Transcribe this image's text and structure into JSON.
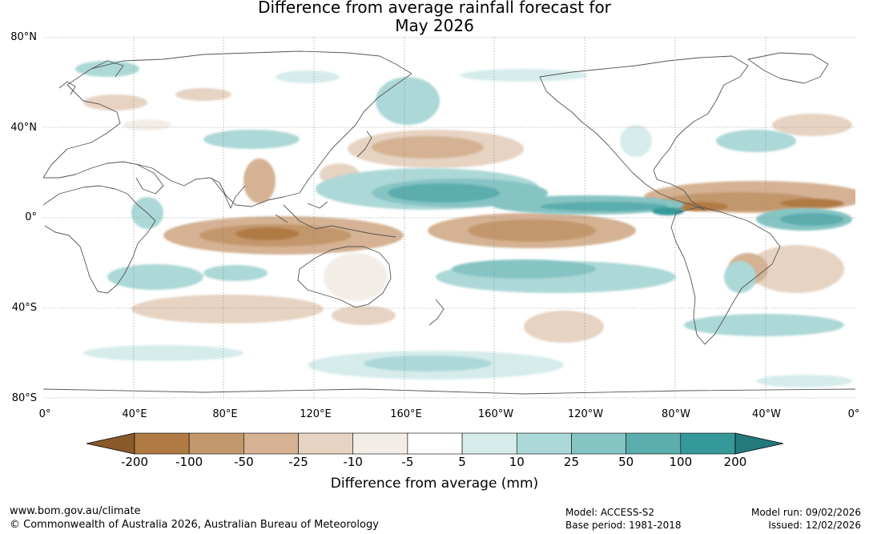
{
  "title_line1": "Difference from average rainfall forecast for",
  "title_line2": "May 2026",
  "lat_labels": [
    "80°N",
    "40°N",
    "0°",
    "40°S",
    "80°S"
  ],
  "lon_labels": [
    "0°",
    "40°E",
    "80°E",
    "120°E",
    "160°E",
    "160°W",
    "120°W",
    "80°W",
    "40°W",
    "0°"
  ],
  "colorbar": {
    "ticks": [
      "-200",
      "-100",
      "-50",
      "-25",
      "-10",
      "-5",
      "5",
      "10",
      "25",
      "50",
      "100",
      "200"
    ],
    "colors": [
      "#8a5a2b",
      "#b07a45",
      "#c3976c",
      "#d4b293",
      "#e6d3c2",
      "#f3ede8",
      "#ffffff",
      "#d5eceb",
      "#acd8d7",
      "#86c4c4",
      "#5cadae",
      "#35999a",
      "#247a7a"
    ],
    "title": "Difference from average (mm)"
  },
  "footer": {
    "website": "www.bom.gov.au/climate",
    "copyright": "© Commonwealth of Australia 2026, Australian Bureau of Meteorology",
    "model": "Model: ACCESS-S2",
    "base_period": "Base period: 1981-2018",
    "model_run": "Model run: 09/02/2026",
    "issued": "Issued: 12/02/2026"
  }
}
